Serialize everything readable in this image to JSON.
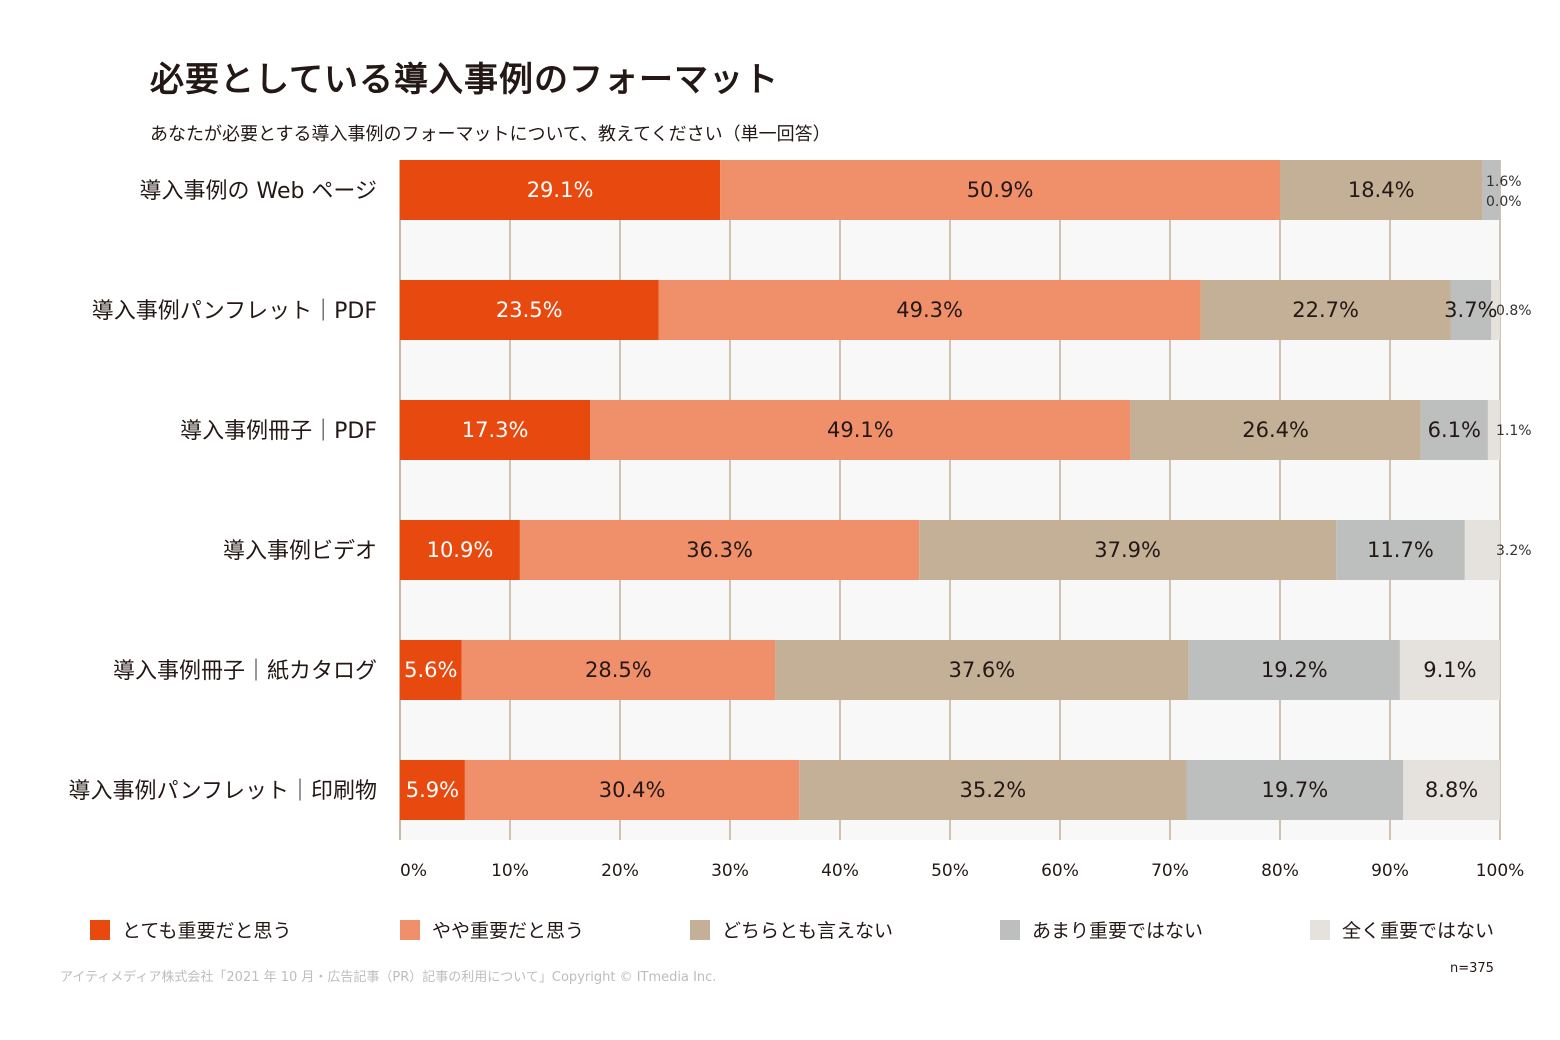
{
  "title": "必要としている導入事例のフォーマット",
  "subtitle": "あなたが必要とする導入事例のフォーマットについて、教えてください（単一回答）",
  "chart_data": {
    "type": "bar",
    "orientation": "horizontal",
    "stacked": true,
    "categories": [
      "導入事例の Web ページ",
      "導入事例パンフレット｜PDF",
      "導入事例冊子｜PDF",
      "導入事例ビデオ",
      "導入事例冊子｜紙カタログ",
      "導入事例パンフレット｜印刷物"
    ],
    "series": [
      {
        "name": "とても重要だと思う",
        "color": "#E8490F",
        "values": [
          29.1,
          23.5,
          17.3,
          10.9,
          5.6,
          5.9
        ]
      },
      {
        "name": "やや重要だと思う",
        "color": "#F0906B",
        "values": [
          50.9,
          49.3,
          49.1,
          36.3,
          28.5,
          30.4
        ]
      },
      {
        "name": "どちらとも言えない",
        "color": "#C4B097",
        "values": [
          18.4,
          22.7,
          26.4,
          37.9,
          37.6,
          35.2
        ]
      },
      {
        "name": "あまり重要ではない",
        "color": "#BDBFBF",
        "values": [
          1.6,
          3.7,
          6.1,
          11.7,
          19.2,
          19.7
        ]
      },
      {
        "name": "全く重要ではない",
        "color": "#E5E1DC",
        "values": [
          0.0,
          0.8,
          1.1,
          3.2,
          9.1,
          8.8
        ]
      }
    ],
    "xticks": [
      "0%",
      "10%",
      "20%",
      "30%",
      "40%",
      "50%",
      "60%",
      "70%",
      "80%",
      "90%",
      "100%"
    ],
    "xlim": [
      0,
      100
    ],
    "label_suffix": "%",
    "grid": true,
    "legend": "bottom"
  },
  "credit": "アイティメディア株式会社「2021 年 10 月・広告記事（PR）記事の利用について」Copyright © ITmedia Inc.",
  "sample_size": "n=375"
}
